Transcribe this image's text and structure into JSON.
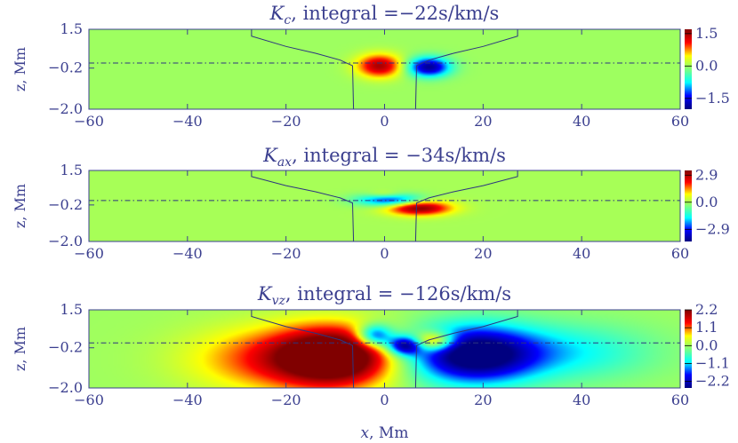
{
  "colors": {
    "background_field": "#7fff7f",
    "axis": "#3b3f8f",
    "colormap": [
      "#000080",
      "#0000ff",
      "#00ffff",
      "#7fff7f",
      "#ffff00",
      "#ff0000",
      "#800000"
    ]
  },
  "chart_data": [
    {
      "type": "heatmap",
      "title_symbol": "K",
      "title_sub": "c",
      "title_rest": ", integral =−22s/km/s",
      "ylabel": "z, Mm",
      "xlabel": "",
      "xlim": [
        -60,
        60
      ],
      "ylim": [
        -2.0,
        1.5
      ],
      "xticks": [
        "−60",
        "−40",
        "−20",
        "0",
        "20",
        "40",
        "60"
      ],
      "yticks": [
        "1.5",
        "−0.2",
        "−2.0"
      ],
      "colorbar": {
        "range": [
          -2.0,
          1.7
        ],
        "ticks": [
          "1.5",
          "0.0",
          "−1.5"
        ],
        "tick_values": [
          1.5,
          0.0,
          -1.5
        ]
      },
      "blobs": [
        {
          "x": -1,
          "z": -0.1,
          "sx": 3.2,
          "sz": 0.35,
          "amp": 1.5
        },
        {
          "x": 9,
          "z": -0.15,
          "sx": 3.0,
          "sz": 0.3,
          "amp": -1.9
        }
      ]
    },
    {
      "type": "heatmap",
      "title_symbol": "K",
      "title_sub": "ax",
      "title_rest": ", integral = −34s/km/s",
      "ylabel": "z, Mm",
      "xlabel": "",
      "xlim": [
        -60,
        60
      ],
      "ylim": [
        -2.0,
        1.5
      ],
      "xticks": [
        "−60",
        "−40",
        "−20",
        "0",
        "20",
        "40",
        "60"
      ],
      "yticks": [
        "1.5",
        "−0.2",
        "−2.0"
      ],
      "colorbar": {
        "range": [
          -4.2,
          3.4
        ],
        "ticks": [
          "2.9",
          "0.0",
          "−2.9"
        ],
        "tick_values": [
          2.9,
          0.0,
          -2.9
        ]
      },
      "blobs": [
        {
          "x": 1,
          "z": 0.05,
          "sx": 4.5,
          "sz": 0.22,
          "amp": -3.0
        },
        {
          "x": 7,
          "z": -0.35,
          "sx": 4.5,
          "sz": 0.25,
          "amp": 3.4
        },
        {
          "x": 0,
          "z": 0.3,
          "sx": 2.5,
          "sz": 0.15,
          "amp": 1.0
        }
      ]
    },
    {
      "type": "heatmap",
      "title_symbol": "K",
      "title_sub": "vz",
      "title_rest": ", integral = −126s/km/s",
      "ylabel": "z, Mm",
      "xlabel": "x, Mm",
      "xlim": [
        -60,
        60
      ],
      "ylim": [
        -2.0,
        1.5
      ],
      "xticks": [
        "−60",
        "−40",
        "−20",
        "0",
        "20",
        "40",
        "60"
      ],
      "yticks": [
        "1.5",
        "−0.2",
        "−2.0"
      ],
      "colorbar": {
        "range": [
          -2.6,
          2.2
        ],
        "ticks": [
          "2.2",
          "1.1",
          "0.0",
          "−1.1",
          "−2.2"
        ],
        "tick_values": [
          2.2,
          1.1,
          0.0,
          -1.1,
          -2.2
        ]
      },
      "blobs": [
        {
          "x": -10,
          "z": -0.6,
          "sx": 8.0,
          "sz": 0.9,
          "amp": 2.8
        },
        {
          "x": -22,
          "z": -0.7,
          "sx": 12.0,
          "sz": 1.0,
          "amp": 1.3
        },
        {
          "x": 18,
          "z": -0.5,
          "sx": 9.0,
          "sz": 0.9,
          "amp": -3.0
        },
        {
          "x": 38,
          "z": -0.4,
          "sx": 12.0,
          "sz": 0.9,
          "amp": -0.9
        },
        {
          "x": -2,
          "z": 0.35,
          "sx": 2.5,
          "sz": 0.35,
          "amp": -2.2
        },
        {
          "x": 10,
          "z": 0.1,
          "sx": 3.0,
          "sz": 0.3,
          "amp": 2.0
        },
        {
          "x": 4,
          "z": -0.1,
          "sx": 2.5,
          "sz": 0.3,
          "amp": -2.4
        }
      ]
    }
  ]
}
